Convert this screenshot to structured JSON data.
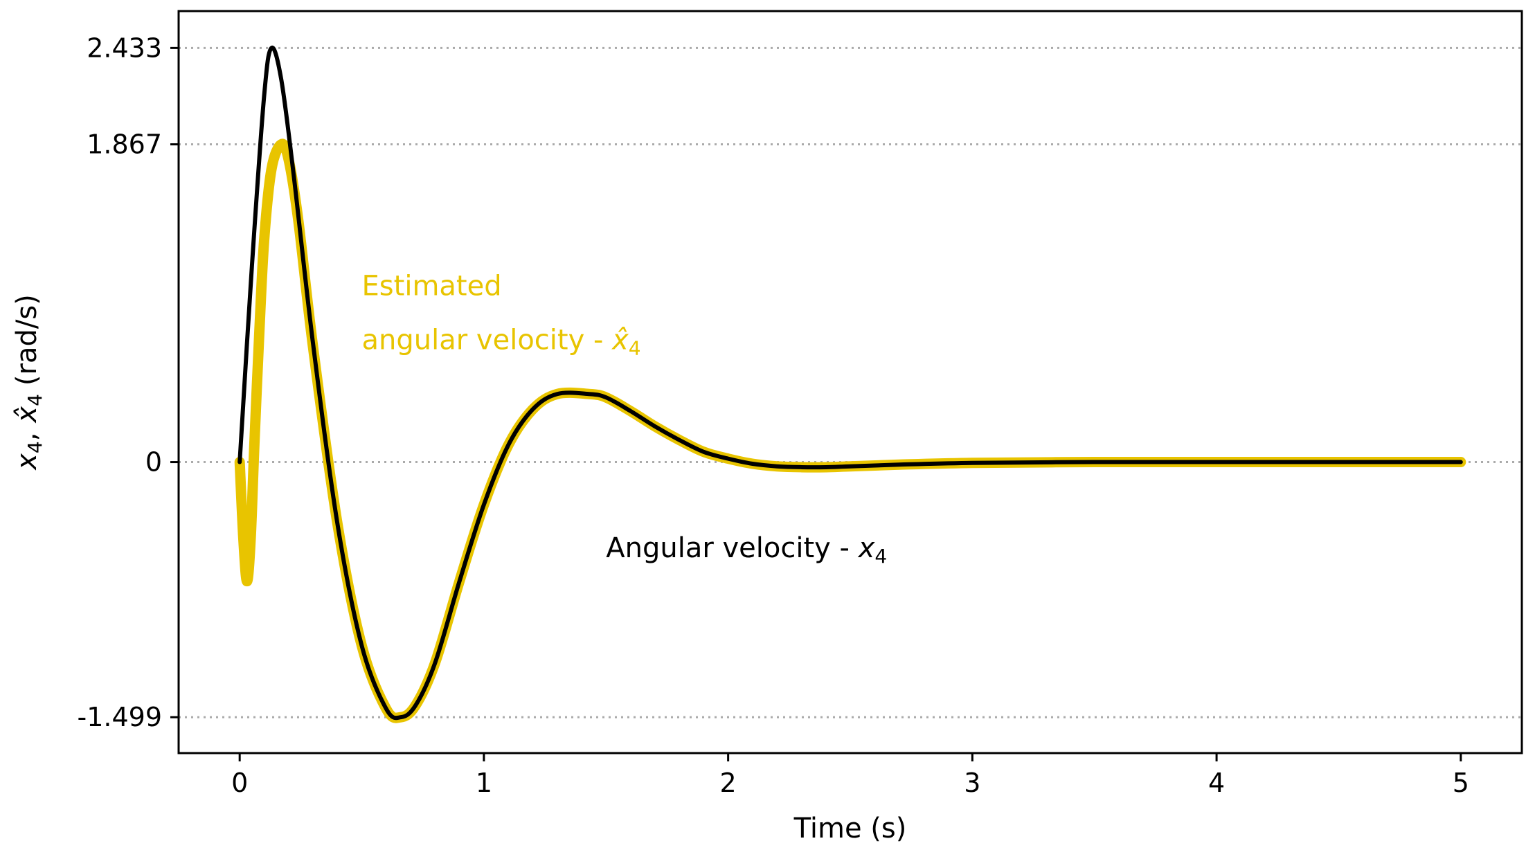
{
  "chart_data": {
    "type": "line",
    "title": "",
    "xlabel": "Time (s)",
    "ylabel": {
      "var1": "x",
      "sub1": "4",
      "sep": ",",
      "var2": "x̂",
      "sub2": "4",
      "unit": "(rad/s)"
    },
    "xlim": [
      -0.25,
      5.25
    ],
    "ylim": [
      -1.71,
      2.65
    ],
    "xticks": [
      "0",
      "1",
      "2",
      "3",
      "4",
      "5"
    ],
    "xtick_values": [
      0,
      1,
      2,
      3,
      4,
      5
    ],
    "yticks": [
      "-1.499",
      "0",
      "1.867",
      "2.433"
    ],
    "ytick_values": [
      -1.499,
      0,
      1.867,
      2.433
    ],
    "grid": "horizontal dotted at y ticks",
    "colors": {
      "actual": "#000000",
      "estimated": "#e8c400",
      "grid": "#aaaaaa",
      "frame": "#000000"
    },
    "series": [
      {
        "name": "Angular velocity - x4",
        "x": [
          0,
          0.05,
          0.1,
          0.13,
          0.17,
          0.22,
          0.3,
          0.4,
          0.5,
          0.6,
          0.66,
          0.72,
          0.8,
          0.9,
          1.0,
          1.1,
          1.2,
          1.3,
          1.43,
          1.5,
          1.6,
          1.7,
          1.8,
          1.9,
          2.0,
          2.1,
          2.2,
          2.3,
          2.4,
          2.5,
          2.7,
          3.0,
          3.5,
          4.0,
          4.5,
          5.0
        ],
        "values": [
          0,
          1.15,
          2.15,
          2.433,
          2.25,
          1.7,
          0.7,
          -0.36,
          -1.08,
          -1.45,
          -1.499,
          -1.43,
          -1.18,
          -0.7,
          -0.25,
          0.1,
          0.31,
          0.4,
          0.4,
          0.38,
          0.3,
          0.21,
          0.13,
          0.06,
          0.02,
          -0.01,
          -0.025,
          -0.03,
          -0.03,
          -0.025,
          -0.015,
          -0.005,
          0.0,
          0.0,
          0.0,
          0.0
        ]
      },
      {
        "name": "Estimated angular velocity - x̂4",
        "x": [
          0,
          0.015,
          0.03,
          0.045,
          0.06,
          0.08,
          0.1,
          0.13,
          0.17,
          0.2,
          0.24,
          0.3,
          0.4,
          0.5,
          0.6,
          0.66,
          0.72,
          0.8,
          0.9,
          1.0,
          1.1,
          1.2,
          1.3,
          1.43,
          1.5,
          1.6,
          1.7,
          1.8,
          1.9,
          2.0,
          2.1,
          2.2,
          2.3,
          2.4,
          2.5,
          2.7,
          3.0,
          3.5,
          4.0,
          4.5,
          5.0
        ],
        "values": [
          0,
          -0.45,
          -0.7,
          -0.45,
          0.1,
          0.75,
          1.3,
          1.72,
          1.867,
          1.78,
          1.42,
          0.68,
          -0.36,
          -1.08,
          -1.45,
          -1.499,
          -1.43,
          -1.18,
          -0.7,
          -0.25,
          0.1,
          0.31,
          0.4,
          0.4,
          0.38,
          0.3,
          0.21,
          0.13,
          0.06,
          0.02,
          -0.01,
          -0.025,
          -0.03,
          -0.03,
          -0.025,
          -0.015,
          -0.005,
          0.0,
          0.0,
          0.0,
          0.0
        ]
      }
    ],
    "annotations": [
      {
        "id": "estimated",
        "line1": "Estimated",
        "line2_text": "angular velocity - ",
        "line2_var": "x̂",
        "line2_sub": "4",
        "x": 0.5,
        "y": 0.98,
        "color": "#e8c400"
      },
      {
        "id": "actual",
        "line1_text": "Angular velocity - ",
        "line1_var": "x",
        "line1_sub": "4",
        "x": 1.5,
        "y": -0.56,
        "color": "#000000"
      }
    ]
  }
}
